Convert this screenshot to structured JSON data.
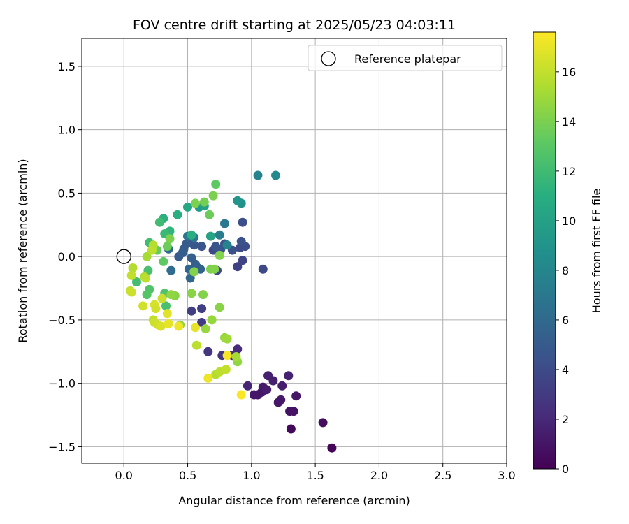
{
  "chart_data": {
    "type": "scatter",
    "title": "FOV centre drift starting at 2025/05/23 04:03:11",
    "xlabel": "Angular distance from reference (arcmin)",
    "ylabel": "Rotation from reference (arcmin)",
    "xlim": [
      -0.33,
      3.0
    ],
    "ylim": [
      -1.63,
      1.72
    ],
    "x_ticks": [
      0.0,
      0.5,
      1.0,
      1.5,
      2.0,
      2.5,
      3.0
    ],
    "x_tick_labels": [
      "0.0",
      "0.5",
      "1.0",
      "1.5",
      "2.0",
      "2.5",
      "3.0"
    ],
    "y_ticks": [
      -1.5,
      -1.0,
      -0.5,
      0.0,
      0.5,
      1.0,
      1.5
    ],
    "y_tick_labels": [
      "−1.5",
      "−1.0",
      "−0.5",
      "0.0",
      "0.5",
      "1.0",
      "1.5"
    ],
    "grid": true,
    "legend": {
      "placement": "top-right",
      "label": "Reference platepar"
    },
    "reference_point": {
      "x": 0.0,
      "y": 0.0
    },
    "colorbar": {
      "label": "Hours from first FF file",
      "colormap": "viridis",
      "range": [
        0,
        17.6
      ],
      "ticks": [
        0,
        2,
        4,
        6,
        8,
        10,
        12,
        14,
        16
      ],
      "tick_labels": [
        "0",
        "2",
        "4",
        "6",
        "8",
        "10",
        "12",
        "14",
        "16"
      ]
    },
    "points": [
      {
        "x": 1.63,
        "y": -1.51,
        "t": 0.2
      },
      {
        "x": 1.56,
        "y": -1.31,
        "t": 0.6
      },
      {
        "x": 1.31,
        "y": -1.36,
        "t": 0.4
      },
      {
        "x": 1.3,
        "y": -1.22,
        "t": 0.8
      },
      {
        "x": 1.33,
        "y": -1.22,
        "t": 0.9
      },
      {
        "x": 1.35,
        "y": -1.1,
        "t": 1.0
      },
      {
        "x": 1.23,
        "y": -1.13,
        "t": 1.2
      },
      {
        "x": 1.21,
        "y": -1.15,
        "t": 1.1
      },
      {
        "x": 1.24,
        "y": -1.02,
        "t": 1.4
      },
      {
        "x": 1.17,
        "y": -0.98,
        "t": 1.5
      },
      {
        "x": 1.13,
        "y": -0.94,
        "t": 1.6
      },
      {
        "x": 1.29,
        "y": -0.94,
        "t": 1.7
      },
      {
        "x": 1.09,
        "y": -1.03,
        "t": 1.3
      },
      {
        "x": 1.11,
        "y": -1.05,
        "t": 1.2
      },
      {
        "x": 1.08,
        "y": -1.07,
        "t": 1.1
      },
      {
        "x": 1.05,
        "y": -1.09,
        "t": 1.0
      },
      {
        "x": 1.02,
        "y": -1.09,
        "t": 1.1
      },
      {
        "x": 1.12,
        "y": -1.05,
        "t": 1.4
      },
      {
        "x": 0.97,
        "y": -1.02,
        "t": 1.8
      },
      {
        "x": 0.89,
        "y": -0.73,
        "t": 2.2
      },
      {
        "x": 0.85,
        "y": -0.78,
        "t": 2.4
      },
      {
        "x": 0.77,
        "y": -0.78,
        "t": 2.6
      },
      {
        "x": 0.66,
        "y": -0.75,
        "t": 2.8
      },
      {
        "x": 0.61,
        "y": -0.52,
        "t": 3.0
      },
      {
        "x": 0.53,
        "y": -0.43,
        "t": 3.2
      },
      {
        "x": 0.61,
        "y": -0.41,
        "t": 3.3
      },
      {
        "x": 0.73,
        "y": -0.11,
        "t": 3.6
      },
      {
        "x": 0.7,
        "y": 0.05,
        "t": 3.8
      },
      {
        "x": 0.89,
        "y": -0.08,
        "t": 3.4
      },
      {
        "x": 0.93,
        "y": -0.03,
        "t": 3.5
      },
      {
        "x": 1.09,
        "y": -0.1,
        "t": 3.9
      },
      {
        "x": 0.93,
        "y": 0.27,
        "t": 4.2
      },
      {
        "x": 0.95,
        "y": 0.08,
        "t": 4.1
      },
      {
        "x": 0.91,
        "y": 0.07,
        "t": 4.0
      },
      {
        "x": 0.92,
        "y": 0.12,
        "t": 4.4
      },
      {
        "x": 0.85,
        "y": 0.05,
        "t": 4.3
      },
      {
        "x": 0.79,
        "y": 0.1,
        "t": 4.5
      },
      {
        "x": 0.76,
        "y": 0.06,
        "t": 4.6
      },
      {
        "x": 0.72,
        "y": 0.08,
        "t": 4.7
      },
      {
        "x": 0.61,
        "y": 0.08,
        "t": 4.6
      },
      {
        "x": 0.55,
        "y": 0.09,
        "t": 4.8
      },
      {
        "x": 0.53,
        "y": 0.12,
        "t": 4.9
      },
      {
        "x": 0.49,
        "y": 0.1,
        "t": 5.0
      },
      {
        "x": 0.47,
        "y": 0.06,
        "t": 5.1
      },
      {
        "x": 0.43,
        "y": 0.0,
        "t": 5.0
      },
      {
        "x": 0.46,
        "y": 0.03,
        "t": 5.2
      },
      {
        "x": 0.53,
        "y": -0.01,
        "t": 5.3
      },
      {
        "x": 0.56,
        "y": -0.06,
        "t": 5.4
      },
      {
        "x": 0.58,
        "y": -0.09,
        "t": 5.5
      },
      {
        "x": 0.6,
        "y": -0.1,
        "t": 5.6
      },
      {
        "x": 0.51,
        "y": -0.1,
        "t": 5.7
      },
      {
        "x": 0.52,
        "y": -0.17,
        "t": 5.8
      },
      {
        "x": 0.35,
        "y": 0.06,
        "t": 6.0
      },
      {
        "x": 0.37,
        "y": -0.11,
        "t": 6.2
      },
      {
        "x": 0.5,
        "y": 0.16,
        "t": 6.8
      },
      {
        "x": 0.55,
        "y": 0.15,
        "t": 7.0
      },
      {
        "x": 0.79,
        "y": 0.26,
        "t": 7.0
      },
      {
        "x": 0.75,
        "y": 0.17,
        "t": 7.4
      },
      {
        "x": 0.81,
        "y": 0.09,
        "t": 7.8
      },
      {
        "x": 1.05,
        "y": 0.64,
        "t": 7.8
      },
      {
        "x": 1.19,
        "y": 0.64,
        "t": 8.2
      },
      {
        "x": 0.92,
        "y": 0.42,
        "t": 8.8
      },
      {
        "x": 0.89,
        "y": 0.44,
        "t": 9.2
      },
      {
        "x": 0.59,
        "y": 0.39,
        "t": 9.4
      },
      {
        "x": 0.63,
        "y": 0.4,
        "t": 10.0
      },
      {
        "x": 0.5,
        "y": 0.39,
        "t": 10.4
      },
      {
        "x": 0.68,
        "y": 0.16,
        "t": 10.2
      },
      {
        "x": 0.53,
        "y": 0.17,
        "t": 11.0
      },
      {
        "x": 0.42,
        "y": 0.33,
        "t": 11.0
      },
      {
        "x": 0.36,
        "y": 0.2,
        "t": 11.4
      },
      {
        "x": 0.31,
        "y": 0.3,
        "t": 11.2
      },
      {
        "x": 0.32,
        "y": 0.18,
        "t": 11.8
      },
      {
        "x": 0.28,
        "y": 0.27,
        "t": 12.0
      },
      {
        "x": 0.2,
        "y": 0.11,
        "t": 12.0
      },
      {
        "x": 0.19,
        "y": -0.11,
        "t": 12.4
      },
      {
        "x": 0.1,
        "y": -0.2,
        "t": 12.2
      },
      {
        "x": 0.2,
        "y": -0.26,
        "t": 12.6
      },
      {
        "x": 0.18,
        "y": -0.3,
        "t": 12.8
      },
      {
        "x": 0.32,
        "y": -0.29,
        "t": 12.6
      },
      {
        "x": 0.33,
        "y": -0.39,
        "t": 12.4
      },
      {
        "x": 0.31,
        "y": -0.04,
        "t": 13.2
      },
      {
        "x": 0.26,
        "y": 0.05,
        "t": 13.4
      },
      {
        "x": 0.34,
        "y": 0.08,
        "t": 13.6
      },
      {
        "x": 0.36,
        "y": 0.14,
        "t": 14.0
      },
      {
        "x": 0.56,
        "y": 0.42,
        "t": 14.0
      },
      {
        "x": 0.63,
        "y": 0.43,
        "t": 13.8
      },
      {
        "x": 0.67,
        "y": 0.33,
        "t": 13.6
      },
      {
        "x": 0.7,
        "y": 0.48,
        "t": 14.0
      },
      {
        "x": 0.72,
        "y": 0.57,
        "t": 13.2
      },
      {
        "x": 0.75,
        "y": 0.01,
        "t": 14.2
      },
      {
        "x": 0.68,
        "y": -0.1,
        "t": 14.0
      },
      {
        "x": 0.71,
        "y": -0.1,
        "t": 14.2
      },
      {
        "x": 0.62,
        "y": -0.3,
        "t": 14.2
      },
      {
        "x": 0.53,
        "y": -0.29,
        "t": 14.4
      },
      {
        "x": 0.55,
        "y": -0.12,
        "t": 14.2
      },
      {
        "x": 0.44,
        "y": -0.54,
        "t": 14.4
      },
      {
        "x": 0.4,
        "y": -0.31,
        "t": 14.4
      },
      {
        "x": 0.37,
        "y": -0.3,
        "t": 14.6
      },
      {
        "x": 0.64,
        "y": -0.57,
        "t": 14.8
      },
      {
        "x": 0.69,
        "y": -0.5,
        "t": 14.8
      },
      {
        "x": 0.75,
        "y": -0.4,
        "t": 14.4
      },
      {
        "x": 0.79,
        "y": -0.64,
        "t": 14.8
      },
      {
        "x": 0.81,
        "y": -0.65,
        "t": 15.0
      },
      {
        "x": 0.89,
        "y": -0.83,
        "t": 14.6
      },
      {
        "x": 0.88,
        "y": -0.79,
        "t": 15.2
      },
      {
        "x": 0.57,
        "y": -0.7,
        "t": 15.8
      },
      {
        "x": 0.72,
        "y": -0.93,
        "t": 15.6
      },
      {
        "x": 0.75,
        "y": -0.91,
        "t": 15.8
      },
      {
        "x": 0.8,
        "y": -0.89,
        "t": 16.0
      },
      {
        "x": 0.18,
        "y": 0.0,
        "t": 15.2
      },
      {
        "x": 0.23,
        "y": 0.09,
        "t": 15.6
      },
      {
        "x": 0.22,
        "y": 0.05,
        "t": 15.8
      },
      {
        "x": 0.07,
        "y": -0.09,
        "t": 15.6
      },
      {
        "x": 0.06,
        "y": -0.15,
        "t": 16.0
      },
      {
        "x": 0.16,
        "y": -0.16,
        "t": 15.4
      },
      {
        "x": 0.17,
        "y": -0.17,
        "t": 15.8
      },
      {
        "x": 0.05,
        "y": -0.27,
        "t": 16.0
      },
      {
        "x": 0.06,
        "y": -0.28,
        "t": 16.2
      },
      {
        "x": 0.3,
        "y": -0.33,
        "t": 16.2
      },
      {
        "x": 0.15,
        "y": -0.39,
        "t": 16.4
      },
      {
        "x": 0.24,
        "y": -0.38,
        "t": 16.6
      },
      {
        "x": 0.25,
        "y": -0.41,
        "t": 16.4
      },
      {
        "x": 0.23,
        "y": -0.5,
        "t": 16.0
      },
      {
        "x": 0.24,
        "y": -0.52,
        "t": 16.2
      },
      {
        "x": 0.27,
        "y": -0.54,
        "t": 16.4
      },
      {
        "x": 0.29,
        "y": -0.55,
        "t": 16.6
      },
      {
        "x": 0.34,
        "y": -0.45,
        "t": 16.8
      },
      {
        "x": 0.35,
        "y": -0.53,
        "t": 17.0
      },
      {
        "x": 0.43,
        "y": -0.55,
        "t": 17.2
      },
      {
        "x": 0.56,
        "y": -0.56,
        "t": 17.0
      },
      {
        "x": 0.81,
        "y": -0.78,
        "t": 17.4
      },
      {
        "x": 0.66,
        "y": -0.96,
        "t": 17.2
      },
      {
        "x": 0.92,
        "y": -1.09,
        "t": 17.5
      }
    ]
  }
}
